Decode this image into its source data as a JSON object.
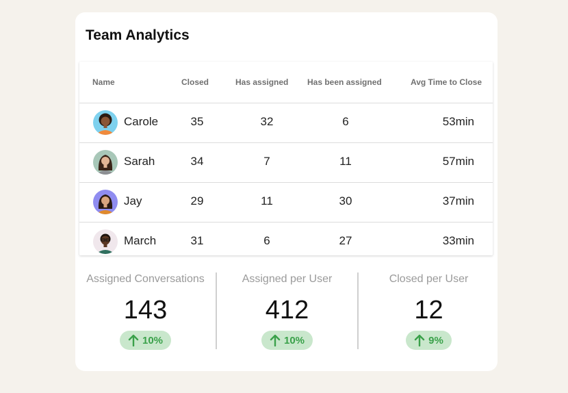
{
  "card": {
    "title": "Team Analytics"
  },
  "table": {
    "headers": [
      "Name",
      "Closed",
      "Has assigned",
      "Has been assigned",
      "Avg Time to Close"
    ],
    "rows": [
      {
        "name": "Carole",
        "closed": "35",
        "has_assigned": "32",
        "has_been_assigned": "6",
        "avg_time": "53min"
      },
      {
        "name": "Sarah",
        "closed": "34",
        "has_assigned": "7",
        "has_been_assigned": "11",
        "avg_time": "57min"
      },
      {
        "name": "Jay",
        "closed": "29",
        "has_assigned": "11",
        "has_been_assigned": "30",
        "avg_time": "37min"
      },
      {
        "name": "March",
        "closed": "31",
        "has_assigned": "6",
        "has_been_assigned": "27",
        "avg_time": "33min"
      }
    ]
  },
  "stats": [
    {
      "label": "Assigned Conversations",
      "value": "143",
      "change": "10%",
      "icon": "arrow-up-icon"
    },
    {
      "label": "Assigned per User",
      "value": "412",
      "change": "10%",
      "icon": "arrow-up-icon"
    },
    {
      "label": "Closed per User",
      "value": "12",
      "change": "9%",
      "icon": "arrow-up-icon"
    }
  ],
  "colors": {
    "background": "#f5f2ec",
    "card": "#ffffff",
    "badge_bg": "#c9e7cc",
    "badge_text": "#3aa14a"
  }
}
